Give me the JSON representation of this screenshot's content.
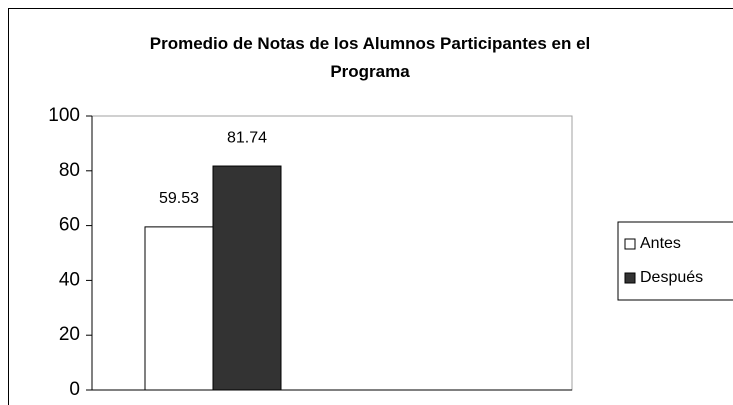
{
  "chart_data": {
    "type": "bar",
    "title": "Promedio de Notas de los Alumnos Participantes en el Programa",
    "categories": [
      null
    ],
    "series": [
      {
        "name": "Antes",
        "color": "#ffffff",
        "values": [
          59.53
        ]
      },
      {
        "name": "Después",
        "color": "#333333",
        "values": [
          81.74
        ]
      }
    ],
    "ylim": [
      0,
      100
    ],
    "yticks": [
      0,
      20,
      40,
      60,
      80,
      100
    ],
    "grid": false,
    "legend": "right"
  }
}
